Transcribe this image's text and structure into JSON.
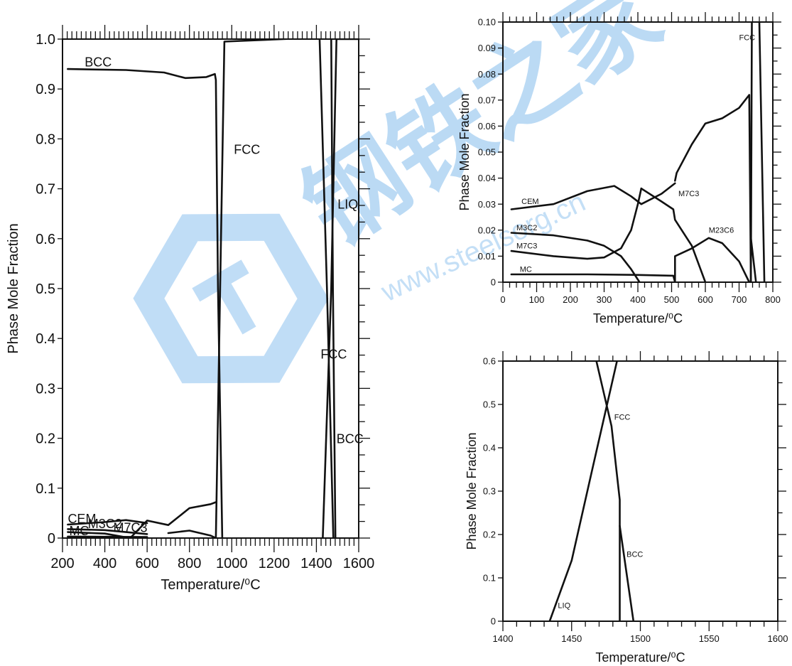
{
  "watermark": {
    "brand": "钢铁之家",
    "url": "www.steelsorg.cn",
    "color": "#2f8fe0"
  },
  "chart_data": [
    {
      "type": "line",
      "id": "main",
      "xlabel": "Temperature/⁰C",
      "ylabel": "Phase Mole Fraction",
      "xlim": [
        200,
        1600
      ],
      "ylim": [
        0,
        1.0
      ],
      "xticks": [
        200,
        400,
        600,
        800,
        1000,
        1200,
        1400,
        1600
      ],
      "xtick_labels": [
        "200",
        "400",
        "600",
        "800",
        "1000",
        "1200",
        "1400",
        "1600"
      ],
      "yticks": [
        0,
        0.1,
        0.2,
        0.3,
        0.4,
        0.5,
        0.6,
        0.7,
        0.8,
        0.9,
        1.0
      ],
      "ytick_labels": [
        "0",
        "0.1",
        "0.2",
        "0.3",
        "0.4",
        "0.5",
        "0.6",
        "0.7",
        "0.8",
        "0.9",
        "1.0"
      ],
      "grid": false,
      "series": [
        {
          "name": "BCC",
          "points": [
            [
              225,
              0.94
            ],
            [
              500,
              0.938
            ],
            [
              680,
              0.933
            ],
            [
              780,
              0.922
            ],
            [
              880,
              0.924
            ],
            [
              920,
              0.93
            ],
            [
              925,
              0.918
            ],
            [
              935,
              0.5
            ],
            [
              955,
              0.0
            ]
          ]
        },
        {
          "name": "FCC",
          "points": [
            [
              925,
              0.0
            ],
            [
              945,
              0.5
            ],
            [
              965,
              0.995
            ],
            [
              1400,
              1.003
            ]
          ]
        },
        {
          "name": "FCC",
          "points": [
            [
              1415,
              1.003
            ],
            [
              1450,
              0.5
            ],
            [
              1480,
              0.0
            ]
          ]
        },
        {
          "name": "BCC",
          "points": [
            [
              1430,
              0.0
            ],
            [
              1470,
              0.5
            ],
            [
              1495,
              1.0
            ],
            [
              1600,
              1.0
            ]
          ]
        },
        {
          "name": "LIQ",
          "points": [
            [
              1470,
              1.0
            ],
            [
              1478,
              0.5
            ],
            [
              1490,
              0.0
            ]
          ]
        },
        {
          "name": "CEM",
          "points": [
            [
              225,
              0.027
            ],
            [
              400,
              0.032
            ],
            [
              500,
              0.036
            ],
            [
              600,
              0.03
            ]
          ]
        },
        {
          "name": "M3C2",
          "points": [
            [
              225,
              0.018
            ],
            [
              400,
              0.016
            ],
            [
              500,
              0.012
            ],
            [
              600,
              0.008
            ]
          ]
        },
        {
          "name": "M7C3",
          "points": [
            [
              225,
              0.012
            ],
            [
              400,
              0.009
            ],
            [
              520,
              0.0
            ],
            [
              600,
              0.035
            ],
            [
              700,
              0.026
            ],
            [
              800,
              0.06
            ],
            [
              900,
              0.068
            ],
            [
              925,
              0.072
            ]
          ]
        },
        {
          "name": "MC",
          "points": [
            [
              225,
              0.003
            ],
            [
              600,
              0.002
            ]
          ]
        },
        {
          "name": "M23C6",
          "points": [
            [
              700,
              0.01
            ],
            [
              800,
              0.015
            ],
            [
              900,
              0.005
            ],
            [
              925,
              0.0
            ]
          ]
        }
      ],
      "labels": [
        {
          "text": "BCC",
          "x": 305,
          "y": 0.945
        },
        {
          "text": "FCC",
          "x": 1010,
          "y": 0.77
        },
        {
          "text": "LIQ",
          "x": 1500,
          "y": 0.66
        },
        {
          "text": "FCC",
          "x": 1420,
          "y": 0.36
        },
        {
          "text": "BCC",
          "x": 1495,
          "y": 0.19
        },
        {
          "text": "CEM",
          "x": 225,
          "y": 0.03
        },
        {
          "text": "M3C2",
          "x": 320,
          "y": 0.02
        },
        {
          "text": "M7C3",
          "x": 440,
          "y": 0.012
        },
        {
          "text": "MC",
          "x": 232,
          "y": 0.006
        }
      ]
    },
    {
      "type": "line",
      "id": "low-temp-zoom",
      "xlabel": "Temperature/⁰C",
      "ylabel": "Phase Mole Fraction",
      "xlim": [
        0,
        800
      ],
      "ylim": [
        0,
        0.1
      ],
      "xticks": [
        0,
        100,
        200,
        300,
        400,
        500,
        600,
        700,
        800
      ],
      "xtick_labels": [
        "0",
        "100",
        "200",
        "300",
        "400",
        "500",
        "600",
        "700",
        "800"
      ],
      "yticks": [
        0,
        0.01,
        0.02,
        0.03,
        0.04,
        0.05,
        0.06,
        0.07,
        0.08,
        0.09,
        0.1
      ],
      "ytick_labels": [
        "0",
        "0.01",
        "0.02",
        "0.03",
        "0.04",
        "0.05",
        "0.06",
        "0.07",
        "0.08",
        "0.09",
        "0.10"
      ],
      "grid": false,
      "series": [
        {
          "name": "CEM",
          "points": [
            [
              25,
              0.028
            ],
            [
              150,
              0.03
            ],
            [
              250,
              0.035
            ],
            [
              330,
              0.037
            ],
            [
              380,
              0.033
            ],
            [
              410,
              0.03
            ],
            [
              470,
              0.034
            ],
            [
              510,
              0.038
            ]
          ]
        },
        {
          "name": "M7C3",
          "points": [
            [
              410,
              0.036
            ],
            [
              470,
              0.031
            ],
            [
              505,
              0.028
            ],
            [
              510,
              0.024
            ],
            [
              560,
              0.014
            ],
            [
              600,
              0.0
            ]
          ]
        },
        {
          "name": "M7C3",
          "points": [
            [
              510,
              0.039
            ],
            [
              515,
              0.042
            ],
            [
              560,
              0.053
            ],
            [
              600,
              0.061
            ],
            [
              650,
              0.063
            ],
            [
              700,
              0.067
            ],
            [
              730,
              0.072
            ],
            [
              735,
              0.0
            ]
          ]
        },
        {
          "name": "M3C2",
          "points": [
            [
              25,
              0.019
            ],
            [
              150,
              0.018
            ],
            [
              250,
              0.016
            ],
            [
              300,
              0.014
            ],
            [
              350,
              0.01
            ],
            [
              380,
              0.005
            ],
            [
              405,
              0.0
            ]
          ]
        },
        {
          "name": "M7C3",
          "points": [
            [
              25,
              0.012
            ],
            [
              150,
              0.01
            ],
            [
              250,
              0.009
            ],
            [
              300,
              0.0095
            ],
            [
              350,
              0.013
            ],
            [
              380,
              0.02
            ],
            [
              400,
              0.03
            ],
            [
              410,
              0.036
            ]
          ]
        },
        {
          "name": "MC",
          "points": [
            [
              25,
              0.003
            ],
            [
              250,
              0.003
            ],
            [
              400,
              0.0028
            ],
            [
              505,
              0.0025
            ],
            [
              510,
              0.0
            ]
          ]
        },
        {
          "name": "M23C6",
          "points": [
            [
              510,
              0.0
            ],
            [
              510,
              0.01
            ],
            [
              560,
              0.013
            ],
            [
              610,
              0.017
            ],
            [
              650,
              0.015
            ],
            [
              700,
              0.008
            ],
            [
              730,
              0.0
            ]
          ]
        },
        {
          "name": "M23C6",
          "points": [
            [
              735,
              0.017
            ],
            [
              750,
              0.0
            ]
          ]
        },
        {
          "name": "FCC",
          "points": [
            [
              735,
              0.0
            ],
            [
              738,
              0.1
            ]
          ]
        },
        {
          "name": "FCC",
          "points": [
            [
              760,
              0.1
            ],
            [
              775,
              0.0
            ]
          ]
        }
      ],
      "labels": [
        {
          "text": "FCC",
          "x": 700,
          "y": 0.093
        },
        {
          "text": "CEM",
          "x": 55,
          "y": 0.03
        },
        {
          "text": "M3C2",
          "x": 40,
          "y": 0.02
        },
        {
          "text": "M7C3",
          "x": 40,
          "y": 0.013
        },
        {
          "text": "MC",
          "x": 50,
          "y": 0.004
        },
        {
          "text": "M7C3",
          "x": 520,
          "y": 0.033
        },
        {
          "text": "M23C6",
          "x": 610,
          "y": 0.019
        }
      ]
    },
    {
      "type": "line",
      "id": "high-temp-zoom",
      "xlabel": "Temperature/⁰C",
      "ylabel": "Phase Mole Fraction",
      "xlim": [
        1400,
        1600
      ],
      "ylim": [
        0,
        0.6
      ],
      "xticks": [
        1400,
        1450,
        1500,
        1550,
        1600
      ],
      "xtick_labels": [
        "1400",
        "1450",
        "1500",
        "1550",
        "1600"
      ],
      "yticks": [
        0,
        0.1,
        0.2,
        0.3,
        0.4,
        0.5,
        0.6
      ],
      "ytick_labels": [
        "0",
        "0.1",
        "0.2",
        "0.3",
        "0.4",
        "0.5",
        "0.6"
      ],
      "grid": false,
      "series": [
        {
          "name": "LIQ",
          "points": [
            [
              1434,
              0.0
            ],
            [
              1450,
              0.14
            ],
            [
              1465,
              0.35
            ],
            [
              1483,
              0.6
            ]
          ]
        },
        {
          "name": "FCC",
          "points": [
            [
              1468,
              0.6
            ],
            [
              1479,
              0.45
            ],
            [
              1485,
              0.28
            ],
            [
              1485,
              0.0
            ]
          ]
        },
        {
          "name": "BCC",
          "points": [
            [
              1485,
              0.22
            ],
            [
              1495,
              0.0
            ]
          ]
        }
      ],
      "labels": [
        {
          "text": "FCC",
          "x": 1481,
          "y": 0.465
        },
        {
          "text": "BCC",
          "x": 1490,
          "y": 0.148
        },
        {
          "text": "LIQ",
          "x": 1440,
          "y": 0.03
        }
      ]
    }
  ]
}
